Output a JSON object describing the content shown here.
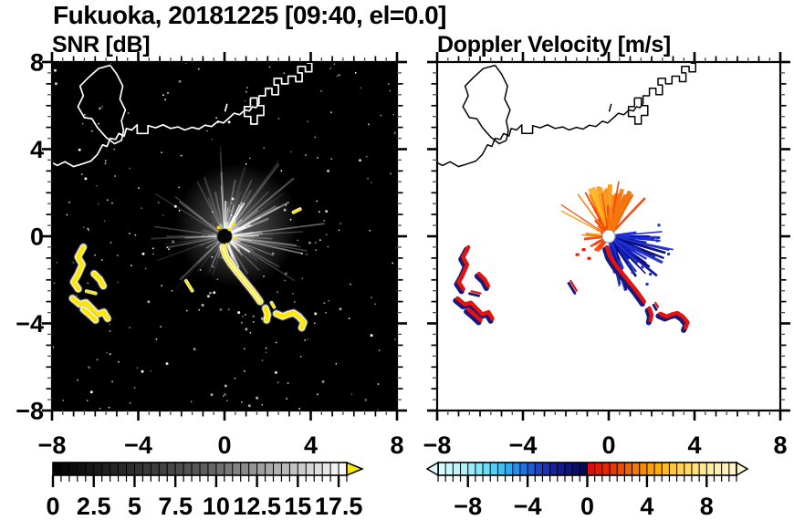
{
  "suptitle": "Fukuoka, 20181225 [09:40, el=0.0]",
  "chart_data": [
    {
      "type": "heatmap",
      "title": "SNR [dB]",
      "variable": "SNR",
      "units": "dB",
      "xlim": [
        -8,
        8
      ],
      "ylim": [
        -8,
        8
      ],
      "xtick_labels": [
        "−8",
        "−4",
        "0",
        "4",
        "8"
      ],
      "ytick_labels": [
        "8",
        "4",
        "0",
        "−4",
        "−8"
      ],
      "xtick_values": [
        -8,
        -4,
        0,
        4,
        8
      ],
      "ytick_values": [
        8,
        4,
        0,
        -4,
        -8
      ],
      "minor_tick_step": 0.5,
      "background": "#000000",
      "coast_color": "#ffffff",
      "echo_color": "#ffe800",
      "radar": {
        "x": 0,
        "y": 0,
        "disc_color": "#070707",
        "ray_color": "#ffffff",
        "ray_sector": "dense gray clutter fan toward E/NE"
      },
      "colorbar": {
        "range": [
          0,
          18
        ],
        "cells": 36,
        "tick_labels": [
          "0",
          "2.5",
          "5",
          "7.5",
          "10",
          "12.5",
          "15",
          "17.5"
        ],
        "tick_values": [
          0,
          2.5,
          5,
          7.5,
          10,
          12.5,
          15,
          17.5
        ],
        "minor_step": 0.5,
        "stops": [
          [
            0,
            "#000000"
          ],
          [
            9,
            "#585858"
          ],
          [
            18,
            "#ffffff"
          ]
        ],
        "over_arrow_color": "#ffe800"
      }
    },
    {
      "type": "heatmap",
      "title": "Doppler Velocity [m/s]",
      "variable": "Doppler Velocity",
      "units": "m/s",
      "xlim": [
        -8,
        8
      ],
      "ylim": [
        -8,
        8
      ],
      "xtick_labels": [
        "−8",
        "−4",
        "0",
        "4",
        "8"
      ],
      "xtick_values": [
        -8,
        -4,
        0,
        4,
        8
      ],
      "minor_tick_step": 0.5,
      "background": "#ffffff",
      "coast_color": "#000000",
      "echo_red": "#e8120a",
      "echo_navy": "#141a7e",
      "radar": {
        "x": 0,
        "y": 0,
        "disc_color": "#ffffff",
        "toward_colors": [
          "#f05a00",
          "#ffb732",
          "#ff7b00",
          "#f5430a",
          "#ff9a00"
        ],
        "away_colors": [
          "#0d13a8",
          "#1c2cd8",
          "#090e7c",
          "#2433cc"
        ],
        "fan_sectors": "orange fan toward N/NW, blue fan toward E/SE"
      },
      "colorbar": {
        "range": [
          -10,
          10
        ],
        "cells": 40,
        "tick_labels": [
          "−8",
          "−4",
          "0",
          "4",
          "8"
        ],
        "tick_values": [
          -8,
          -4,
          0,
          4,
          8
        ],
        "minor_step": 0.5,
        "stops": [
          [
            -10,
            "#d8fdff"
          ],
          [
            -8,
            "#a8f1fb"
          ],
          [
            -6.5,
            "#5ed9f5"
          ],
          [
            -5.2,
            "#2fa8ee"
          ],
          [
            -4.2,
            "#1f6ee0"
          ],
          [
            -3.2,
            "#1e41d2"
          ],
          [
            -2.2,
            "#161f9f"
          ],
          [
            -1.0,
            "#0c1170"
          ],
          [
            -0.15,
            "#06094a"
          ],
          [
            0.15,
            "#d50f08"
          ],
          [
            1.5,
            "#e62e06"
          ],
          [
            2.8,
            "#f56200"
          ],
          [
            4.0,
            "#fc9500"
          ],
          [
            5.2,
            "#ffbb22"
          ],
          [
            6.5,
            "#ffd75e"
          ],
          [
            8,
            "#ffeb9a"
          ],
          [
            10,
            "#fff6c8"
          ]
        ],
        "under_arrow_color": "#dffdff",
        "over_arrow_color": "#fff8cf"
      }
    }
  ],
  "map_features": {
    "coast": [
      [
        -8.15,
        3.45
      ],
      [
        -7.75,
        3.25
      ],
      [
        -7.4,
        3.42
      ],
      [
        -7.0,
        3.2
      ],
      [
        -6.6,
        3.32
      ],
      [
        -6.2,
        3.45
      ],
      [
        -5.9,
        3.75
      ],
      [
        -5.65,
        4.2
      ],
      [
        -5.45,
        4.12
      ],
      [
        -5.3,
        4.5
      ],
      [
        -5.05,
        4.45
      ],
      [
        -4.9,
        4.72
      ],
      [
        -4.65,
        4.6
      ],
      [
        -4.55,
        4.95
      ],
      [
        -4.3,
        4.88
      ],
      [
        -4.05,
        5.12
      ],
      [
        -4.05,
        4.72
      ],
      [
        -3.55,
        4.72
      ],
      [
        -3.55,
        5.08
      ],
      [
        -3.2,
        4.98
      ],
      [
        -2.85,
        5.12
      ],
      [
        -2.5,
        4.95
      ],
      [
        -2.15,
        5.02
      ],
      [
        -1.85,
        4.88
      ],
      [
        -1.5,
        5.0
      ],
      [
        -1.2,
        4.92
      ],
      [
        -0.9,
        5.1
      ],
      [
        -0.6,
        5.04
      ],
      [
        -0.3,
        5.28
      ],
      [
        -0.05,
        5.2
      ],
      [
        0.2,
        5.42
      ],
      [
        0.45,
        5.65
      ],
      [
        0.7,
        5.58
      ],
      [
        0.95,
        5.8
      ],
      [
        1.15,
        5.75
      ],
      [
        1.3,
        5.95
      ],
      [
        1.45,
        5.9
      ],
      [
        1.6,
        6.1
      ],
      [
        1.6,
        6.45
      ],
      [
        1.9,
        6.45
      ],
      [
        1.9,
        6.8
      ],
      [
        2.2,
        6.8
      ],
      [
        2.2,
        6.5
      ],
      [
        2.5,
        6.5
      ],
      [
        2.5,
        6.95
      ],
      [
        2.3,
        6.95
      ],
      [
        2.3,
        7.25
      ],
      [
        2.65,
        7.25
      ],
      [
        2.65,
        7.0
      ],
      [
        2.95,
        7.0
      ],
      [
        2.95,
        7.35
      ],
      [
        3.3,
        7.35
      ],
      [
        3.3,
        7.1
      ],
      [
        3.6,
        7.1
      ],
      [
        3.6,
        7.5
      ],
      [
        3.4,
        7.5
      ],
      [
        3.4,
        7.8
      ],
      [
        3.75,
        7.8
      ],
      [
        3.75,
        7.55
      ],
      [
        4.05,
        7.55
      ],
      [
        4.05,
        7.95
      ],
      [
        3.85,
        7.95
      ],
      [
        3.85,
        8.2
      ]
    ],
    "island": [
      [
        -5.3,
        7.85
      ],
      [
        -5.85,
        7.7
      ],
      [
        -6.3,
        7.3
      ],
      [
        -6.7,
        6.9
      ],
      [
        -6.55,
        6.45
      ],
      [
        -6.8,
        5.95
      ],
      [
        -6.5,
        5.45
      ],
      [
        -6.15,
        5.4
      ],
      [
        -5.9,
        5.0
      ],
      [
        -5.5,
        4.55
      ],
      [
        -5.1,
        4.25
      ],
      [
        -4.78,
        4.4
      ],
      [
        -4.68,
        4.85
      ],
      [
        -4.78,
        5.3
      ],
      [
        -4.6,
        5.8
      ],
      [
        -4.85,
        6.3
      ],
      [
        -4.72,
        6.9
      ],
      [
        -5.0,
        7.45
      ],
      [
        -5.3,
        7.85
      ]
    ],
    "pier": [
      [
        1.2,
        6.35
      ],
      [
        1.2,
        5.95
      ],
      [
        0.92,
        5.95
      ],
      [
        0.92,
        5.5
      ],
      [
        1.22,
        5.5
      ],
      [
        1.22,
        5.15
      ],
      [
        1.52,
        5.15
      ],
      [
        1.52,
        5.55
      ],
      [
        1.82,
        5.55
      ],
      [
        1.82,
        6.0
      ],
      [
        1.52,
        6.0
      ],
      [
        1.52,
        6.35
      ],
      [
        1.2,
        6.35
      ]
    ],
    "islet": [
      [
        0.02,
        5.72
      ],
      [
        0.12,
        6.08
      ]
    ]
  },
  "echo_regions": [
    {
      "name": "west-cluster-a",
      "points": [
        [
          -6.55,
          -0.5
        ],
        [
          -6.8,
          -0.95
        ],
        [
          -6.6,
          -1.3
        ],
        [
          -6.8,
          -1.75
        ],
        [
          -7.0,
          -2.1
        ],
        [
          -6.78,
          -2.42
        ]
      ],
      "thin": false
    },
    {
      "name": "west-cluster-b",
      "points": [
        [
          -6.05,
          -1.72
        ],
        [
          -5.78,
          -1.98
        ],
        [
          -5.62,
          -2.28
        ]
      ],
      "thin": false
    },
    {
      "name": "west-cluster-dash",
      "points": [
        [
          -6.4,
          -2.52
        ],
        [
          -5.98,
          -2.62
        ]
      ],
      "thin": true
    },
    {
      "name": "west-cluster-c",
      "points": [
        [
          -7.05,
          -2.85
        ],
        [
          -6.72,
          -3.12
        ],
        [
          -6.42,
          -3.05
        ],
        [
          -6.15,
          -3.32
        ],
        [
          -5.9,
          -3.58
        ],
        [
          -5.6,
          -3.48
        ],
        [
          -5.42,
          -3.78
        ]
      ],
      "thin": false
    },
    {
      "name": "west-cluster-d",
      "points": [
        [
          -6.55,
          -3.35
        ],
        [
          -6.25,
          -3.6
        ],
        [
          -5.98,
          -3.85
        ]
      ],
      "thin": false
    },
    {
      "name": "mid-dash",
      "points": [
        [
          -1.78,
          -2.05
        ],
        [
          -1.5,
          -2.5
        ]
      ],
      "thin": true
    },
    {
      "name": "south-chain-a",
      "points": [
        [
          -0.08,
          -0.5
        ],
        [
          0.05,
          -0.9
        ],
        [
          0.3,
          -1.28
        ],
        [
          0.55,
          -1.6
        ],
        [
          0.8,
          -1.9
        ],
        [
          1.0,
          -2.15
        ],
        [
          1.25,
          -2.45
        ],
        [
          1.45,
          -2.72
        ],
        [
          1.65,
          -3.0
        ]
      ],
      "thin": false,
      "bright": true
    },
    {
      "name": "south-chain-b",
      "points": [
        [
          1.9,
          -3.3
        ],
        [
          2.0,
          -3.6
        ],
        [
          1.95,
          -3.85
        ]
      ],
      "thin": false
    },
    {
      "name": "south-chain-c",
      "points": [
        [
          2.4,
          -3.55
        ],
        [
          2.7,
          -3.68
        ],
        [
          2.95,
          -3.58
        ],
        [
          3.2,
          -3.52
        ],
        [
          3.45,
          -3.68
        ],
        [
          3.68,
          -3.95
        ],
        [
          3.58,
          -4.2
        ]
      ],
      "thin": false
    },
    {
      "name": "south-chain-speck",
      "points": [
        [
          2.18,
          -3.05
        ],
        [
          2.3,
          -3.25
        ]
      ],
      "thin": true
    },
    {
      "name": "northeast-dash",
      "points": [
        [
          3.2,
          1.1
        ],
        [
          3.5,
          1.25
        ]
      ],
      "thin": true,
      "snr_only": true
    }
  ]
}
